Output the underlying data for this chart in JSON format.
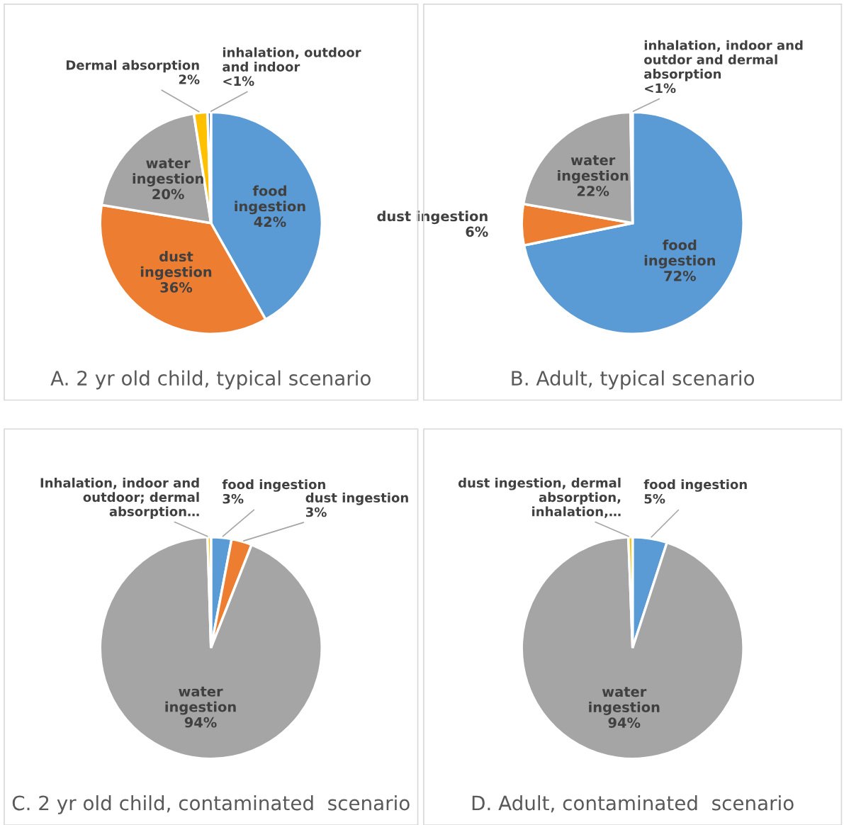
{
  "chart_data": [
    {
      "type": "pie",
      "title": "A. 2 yr old child, typical scenario",
      "categories": [
        "food ingestion",
        "dust ingestion",
        "water ingestion",
        "Dermal absorption",
        "inhalation, outdoor and indoor"
      ],
      "values": [
        42,
        36,
        20,
        2,
        0.5
      ],
      "value_labels": [
        "42%",
        "36%",
        "20%",
        "2%",
        "<1%"
      ],
      "colors": [
        "#5b9bd5",
        "#ed7d31",
        "#a5a5a5",
        "#ffc000",
        "#4472c4"
      ]
    },
    {
      "type": "pie",
      "title": "B. Adult, typical scenario",
      "categories": [
        "food ingestion",
        "dust ingestion",
        "water ingestion",
        "inhalation, indoor and outdor and dermal absorption"
      ],
      "values": [
        72,
        6,
        22,
        0.3
      ],
      "value_labels": [
        "72%",
        "6%",
        "22%",
        "<1%"
      ],
      "colors": [
        "#5b9bd5",
        "#ed7d31",
        "#a5a5a5",
        "#70ad47"
      ]
    },
    {
      "type": "pie",
      "title": "C. 2 yr old child, contaminated  scenario",
      "categories": [
        "food ingestion",
        "dust ingestion",
        "water ingestion",
        "Inhalation, indoor and outdoor; dermal absorption…"
      ],
      "values": [
        3,
        3,
        94,
        0.5
      ],
      "value_labels": [
        "3%",
        "3%",
        "94%",
        null
      ],
      "colors": [
        "#5b9bd5",
        "#ed7d31",
        "#a5a5a5",
        "#ffc000"
      ]
    },
    {
      "type": "pie",
      "title": "D. Adult, contaminated  scenario",
      "categories": [
        "food ingestion",
        "water ingestion",
        "dust ingestion, dermal absorption, inhalation,…"
      ],
      "values": [
        5,
        94,
        0.6
      ],
      "value_labels": [
        "5%",
        "94%",
        null
      ],
      "colors": [
        "#5b9bd5",
        "#a5a5a5",
        "#ffc000"
      ]
    }
  ]
}
